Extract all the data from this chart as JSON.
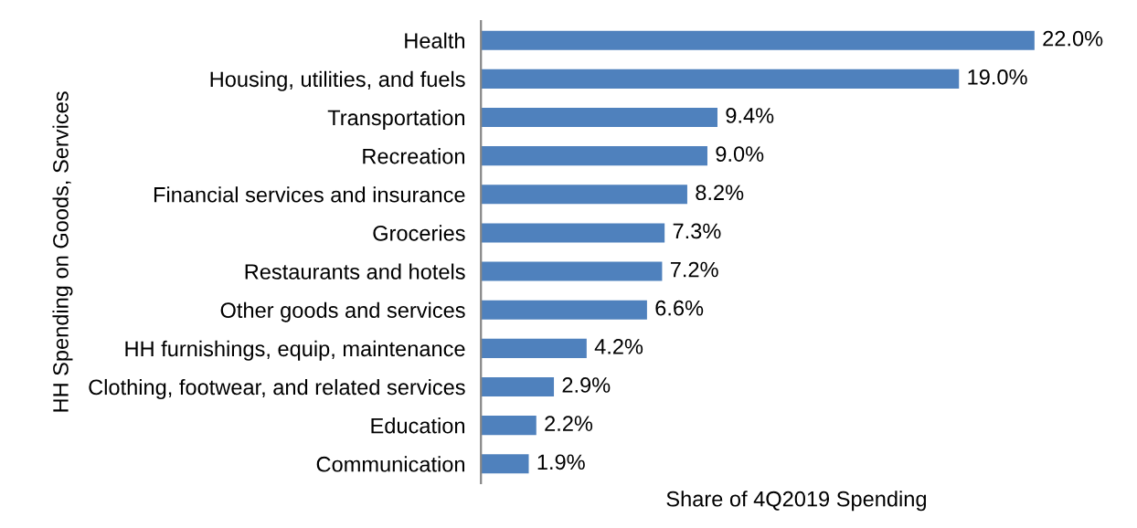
{
  "chart_data": {
    "type": "bar",
    "orientation": "horizontal",
    "categories": [
      "Health",
      "Housing, utilities, and fuels",
      "Transportation",
      "Recreation",
      "Financial services and insurance",
      "Groceries",
      "Restaurants and hotels",
      "Other goods and services",
      "HH furnishings, equip, maintenance",
      "Clothing, footwear, and related services",
      "Education",
      "Communication"
    ],
    "values": [
      22.0,
      19.0,
      9.4,
      9.0,
      8.2,
      7.3,
      7.2,
      6.6,
      4.2,
      2.9,
      2.2,
      1.9
    ],
    "value_labels": [
      "22.0%",
      "19.0%",
      "9.4%",
      "9.0%",
      "8.2%",
      "7.3%",
      "7.2%",
      "6.6%",
      "4.2%",
      "2.9%",
      "2.2%",
      "1.9%"
    ],
    "color": "#4f81bd",
    "xlabel": "Share of 4Q2019 Spending",
    "ylabel": "HH Spending on Goods, Services",
    "grid": false,
    "legend": false
  }
}
